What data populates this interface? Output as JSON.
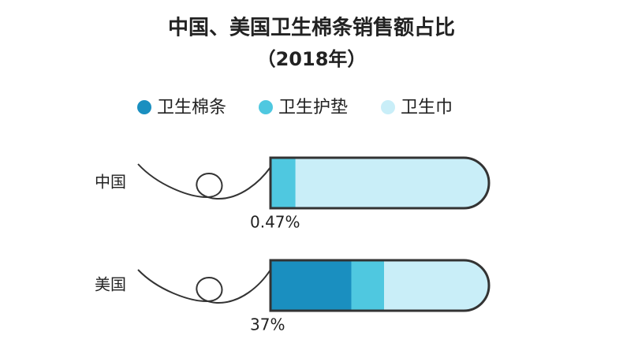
{
  "chart_data": {
    "type": "stacked-bar-horizontal",
    "title": "中国、美国卫生棉条销售额占比",
    "subtitle": "（2018年）",
    "categories": [
      "中国",
      "美国"
    ],
    "xlim": [
      0,
      100
    ],
    "series": [
      {
        "name": "卫生棉条",
        "color": "#1a8fc0",
        "values": [
          0.47,
          37
        ],
        "value_labels": [
          "0.47%",
          "37%"
        ]
      },
      {
        "name": "卫生护垫",
        "color": "#4fc8e0",
        "values": [
          11,
          15
        ]
      },
      {
        "name": "卫生巾",
        "color": "#c9eef8",
        "values": [
          88.53,
          48
        ]
      }
    ],
    "legend": "top"
  }
}
